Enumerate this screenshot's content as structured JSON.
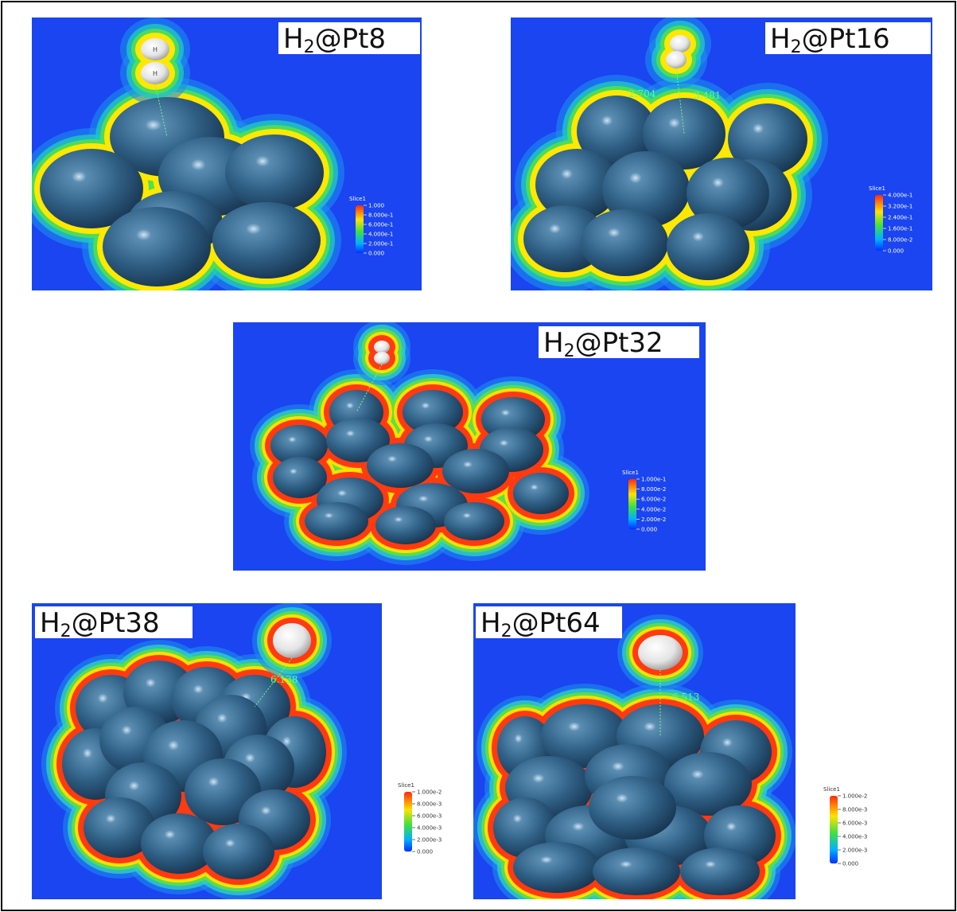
{
  "panels": [
    {
      "label": [
        "H",
        "2",
        "@Pt8"
      ],
      "atoms": [
        "H",
        "H"
      ],
      "distances": [],
      "legend": {
        "title": "Slice1",
        "ticks": [
          "1.000",
          "8.000e-1",
          "6.000e-1",
          "4.000e-1",
          "2.000e-1",
          "0.000"
        ]
      }
    },
    {
      "label": [
        "H",
        "2",
        "@Pt16"
      ],
      "atoms": [],
      "distances": [
        "2.704",
        "3.481"
      ],
      "legend": {
        "title": "Slice1",
        "ticks": [
          "4.000e-1",
          "3.200e-1",
          "2.400e-1",
          "1.600e-1",
          "8.000e-2",
          "0.000"
        ]
      }
    },
    {
      "label": [
        "H",
        "2",
        "@Pt32"
      ],
      "atoms": [],
      "distances": [],
      "legend": {
        "title": "Slice1",
        "ticks": [
          "1.000e-1",
          "8.000e-2",
          "6.000e-2",
          "4.000e-2",
          "2.000e-2",
          "0.000"
        ]
      }
    },
    {
      "label": [
        "H",
        "2",
        "@Pt38"
      ],
      "atoms": [],
      "distances": [
        "6.138"
      ],
      "legend": {
        "title": "Slice1",
        "ticks": [
          "1.000e-2",
          "8.000e-3",
          "6.000e-3",
          "4.000e-3",
          "2.000e-3",
          "0.000"
        ]
      }
    },
    {
      "label": [
        "H",
        "2",
        "@Pt64"
      ],
      "atoms": [],
      "distances": [
        "6.513"
      ],
      "legend": {
        "title": "Slice1",
        "ticks": [
          "1.000e-2",
          "8.000e-3",
          "6.000e-3",
          "4.000e-3",
          "2.000e-3",
          "0.000"
        ]
      }
    }
  ]
}
